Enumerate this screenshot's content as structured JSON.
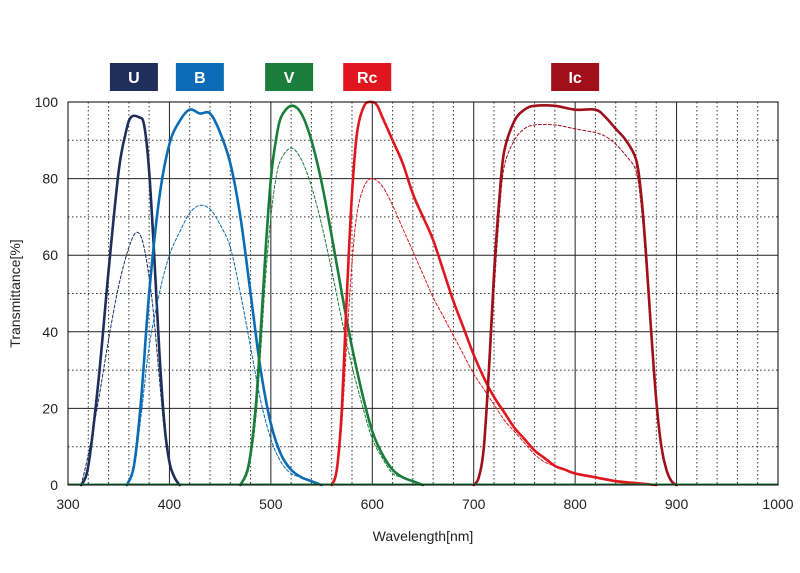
{
  "chart_data": {
    "type": "line",
    "title": "",
    "xlabel": "Wavelength[nm]",
    "ylabel": "Transmittance[%]",
    "xlim": [
      300,
      1000
    ],
    "ylim": [
      0,
      100
    ],
    "x_ticks": [
      300,
      400,
      500,
      600,
      700,
      800,
      900,
      1000
    ],
    "y_ticks": [
      0,
      20,
      40,
      60,
      80,
      100
    ],
    "grid": {
      "major": "solid",
      "minor": "dotted"
    },
    "legend": "top badges",
    "series": [
      {
        "name": "U",
        "color": "#1f2f5c",
        "style": "solid",
        "points": [
          [
            313,
            0
          ],
          [
            320,
            5
          ],
          [
            330,
            27
          ],
          [
            340,
            56
          ],
          [
            350,
            82
          ],
          [
            357,
            92
          ],
          [
            362,
            96
          ],
          [
            370,
            96
          ],
          [
            375,
            94
          ],
          [
            380,
            82
          ],
          [
            385,
            60
          ],
          [
            390,
            35
          ],
          [
            395,
            16
          ],
          [
            400,
            6
          ],
          [
            405,
            2
          ],
          [
            410,
            0
          ]
        ]
      },
      {
        "name": "U",
        "color": "#1f2f5c",
        "style": "dashed",
        "points": [
          [
            313,
            0
          ],
          [
            320,
            8
          ],
          [
            330,
            22
          ],
          [
            340,
            38
          ],
          [
            350,
            52
          ],
          [
            360,
            62
          ],
          [
            368,
            66
          ],
          [
            375,
            62
          ],
          [
            383,
            48
          ],
          [
            390,
            28
          ],
          [
            395,
            14
          ],
          [
            400,
            6
          ],
          [
            405,
            2
          ],
          [
            410,
            0
          ]
        ]
      },
      {
        "name": "B",
        "color": "#0b6cb5",
        "style": "solid",
        "points": [
          [
            358,
            0
          ],
          [
            365,
            5
          ],
          [
            372,
            22
          ],
          [
            380,
            50
          ],
          [
            390,
            75
          ],
          [
            400,
            89
          ],
          [
            410,
            95
          ],
          [
            420,
            98
          ],
          [
            430,
            97
          ],
          [
            440,
            97
          ],
          [
            450,
            92
          ],
          [
            460,
            84
          ],
          [
            470,
            70
          ],
          [
            480,
            50
          ],
          [
            490,
            30
          ],
          [
            500,
            16
          ],
          [
            510,
            8
          ],
          [
            520,
            4
          ],
          [
            530,
            2
          ],
          [
            540,
            1
          ],
          [
            550,
            0
          ]
        ]
      },
      {
        "name": "B",
        "color": "#0b6cb5",
        "style": "dashed",
        "points": [
          [
            358,
            0
          ],
          [
            365,
            4
          ],
          [
            372,
            18
          ],
          [
            380,
            36
          ],
          [
            390,
            50
          ],
          [
            400,
            60
          ],
          [
            410,
            66
          ],
          [
            420,
            71
          ],
          [
            430,
            73
          ],
          [
            440,
            72
          ],
          [
            450,
            68
          ],
          [
            460,
            62
          ],
          [
            470,
            50
          ],
          [
            480,
            36
          ],
          [
            490,
            22
          ],
          [
            500,
            12
          ],
          [
            510,
            6
          ],
          [
            520,
            3
          ],
          [
            530,
            2
          ],
          [
            540,
            1
          ],
          [
            550,
            0
          ]
        ]
      },
      {
        "name": "V",
        "color": "#1a7d3a",
        "style": "solid",
        "points": [
          [
            470,
            0
          ],
          [
            478,
            5
          ],
          [
            485,
            20
          ],
          [
            490,
            40
          ],
          [
            495,
            62
          ],
          [
            500,
            80
          ],
          [
            505,
            90
          ],
          [
            510,
            96
          ],
          [
            520,
            99
          ],
          [
            530,
            97
          ],
          [
            540,
            90
          ],
          [
            550,
            79
          ],
          [
            560,
            65
          ],
          [
            570,
            50
          ],
          [
            580,
            36
          ],
          [
            590,
            24
          ],
          [
            600,
            14
          ],
          [
            610,
            8
          ],
          [
            620,
            4
          ],
          [
            630,
            2
          ],
          [
            640,
            1
          ],
          [
            650,
            0
          ]
        ]
      },
      {
        "name": "V",
        "color": "#1a7d3a",
        "style": "dashed",
        "points": [
          [
            470,
            0
          ],
          [
            478,
            4
          ],
          [
            485,
            17
          ],
          [
            490,
            35
          ],
          [
            495,
            55
          ],
          [
            500,
            70
          ],
          [
            505,
            80
          ],
          [
            510,
            85
          ],
          [
            520,
            88
          ],
          [
            530,
            85
          ],
          [
            540,
            78
          ],
          [
            550,
            68
          ],
          [
            560,
            56
          ],
          [
            570,
            43
          ],
          [
            580,
            31
          ],
          [
            590,
            21
          ],
          [
            600,
            12
          ],
          [
            610,
            7
          ],
          [
            620,
            3
          ],
          [
            630,
            2
          ],
          [
            640,
            1
          ],
          [
            650,
            0
          ]
        ]
      },
      {
        "name": "Rc",
        "color": "#e0161e",
        "style": "solid",
        "points": [
          [
            560,
            0
          ],
          [
            565,
            4
          ],
          [
            570,
            20
          ],
          [
            575,
            50
          ],
          [
            580,
            76
          ],
          [
            585,
            92
          ],
          [
            592,
            99
          ],
          [
            600,
            100
          ],
          [
            605,
            99
          ],
          [
            610,
            96
          ],
          [
            620,
            90
          ],
          [
            630,
            84
          ],
          [
            640,
            76
          ],
          [
            650,
            70
          ],
          [
            660,
            64
          ],
          [
            670,
            56
          ],
          [
            680,
            48
          ],
          [
            690,
            41
          ],
          [
            700,
            34
          ],
          [
            710,
            28
          ],
          [
            720,
            23
          ],
          [
            730,
            19
          ],
          [
            740,
            15
          ],
          [
            750,
            12
          ],
          [
            760,
            9
          ],
          [
            770,
            7
          ],
          [
            780,
            5
          ],
          [
            790,
            4
          ],
          [
            800,
            3
          ],
          [
            820,
            2
          ],
          [
            840,
            1
          ],
          [
            860,
            0.5
          ],
          [
            880,
            0
          ]
        ]
      },
      {
        "name": "Rc",
        "color": "#e0161e",
        "style": "dashed",
        "points": [
          [
            560,
            0
          ],
          [
            565,
            3
          ],
          [
            570,
            16
          ],
          [
            575,
            38
          ],
          [
            580,
            58
          ],
          [
            585,
            71
          ],
          [
            592,
            78
          ],
          [
            600,
            80
          ],
          [
            610,
            78
          ],
          [
            620,
            73
          ],
          [
            630,
            67
          ],
          [
            640,
            61
          ],
          [
            650,
            55
          ],
          [
            660,
            49
          ],
          [
            670,
            44
          ],
          [
            680,
            39
          ],
          [
            690,
            34
          ],
          [
            700,
            29
          ],
          [
            710,
            25
          ],
          [
            720,
            21
          ],
          [
            730,
            17
          ],
          [
            740,
            14
          ],
          [
            750,
            11
          ],
          [
            760,
            8
          ],
          [
            770,
            6
          ],
          [
            780,
            5
          ],
          [
            790,
            4
          ],
          [
            800,
            3
          ],
          [
            820,
            2
          ],
          [
            840,
            1
          ],
          [
            860,
            0.5
          ],
          [
            880,
            0
          ]
        ]
      },
      {
        "name": "Ic",
        "color": "#a0101b",
        "style": "solid",
        "points": [
          [
            700,
            0
          ],
          [
            705,
            2
          ],
          [
            710,
            10
          ],
          [
            715,
            30
          ],
          [
            720,
            55
          ],
          [
            725,
            74
          ],
          [
            730,
            87
          ],
          [
            740,
            95
          ],
          [
            750,
            98
          ],
          [
            760,
            99
          ],
          [
            780,
            99
          ],
          [
            800,
            98
          ],
          [
            820,
            98
          ],
          [
            830,
            96
          ],
          [
            840,
            93
          ],
          [
            850,
            90
          ],
          [
            860,
            85
          ],
          [
            865,
            76
          ],
          [
            870,
            60
          ],
          [
            875,
            40
          ],
          [
            880,
            22
          ],
          [
            885,
            10
          ],
          [
            890,
            4
          ],
          [
            895,
            1
          ],
          [
            900,
            0
          ]
        ]
      },
      {
        "name": "Ic",
        "color": "#a0101b",
        "style": "dashed",
        "points": [
          [
            700,
            0
          ],
          [
            705,
            2
          ],
          [
            710,
            9
          ],
          [
            715,
            27
          ],
          [
            720,
            50
          ],
          [
            725,
            70
          ],
          [
            730,
            83
          ],
          [
            740,
            90
          ],
          [
            750,
            93
          ],
          [
            760,
            94
          ],
          [
            780,
            94
          ],
          [
            800,
            93
          ],
          [
            820,
            92
          ],
          [
            830,
            91
          ],
          [
            840,
            89
          ],
          [
            850,
            86
          ],
          [
            860,
            82
          ],
          [
            865,
            73
          ],
          [
            870,
            57
          ],
          [
            875,
            38
          ],
          [
            880,
            21
          ],
          [
            885,
            10
          ],
          [
            890,
            4
          ],
          [
            895,
            1
          ],
          [
            900,
            0
          ]
        ]
      }
    ],
    "badges": [
      {
        "label": "U",
        "color": "#1f2f5c",
        "x": 365
      },
      {
        "label": "B",
        "color": "#0b6cb5",
        "x": 430
      },
      {
        "label": "V",
        "color": "#1a7d3a",
        "x": 518
      },
      {
        "label": "Rc",
        "color": "#e0161e",
        "x": 595
      },
      {
        "label": "Ic",
        "color": "#a0101b",
        "x": 800
      }
    ]
  }
}
